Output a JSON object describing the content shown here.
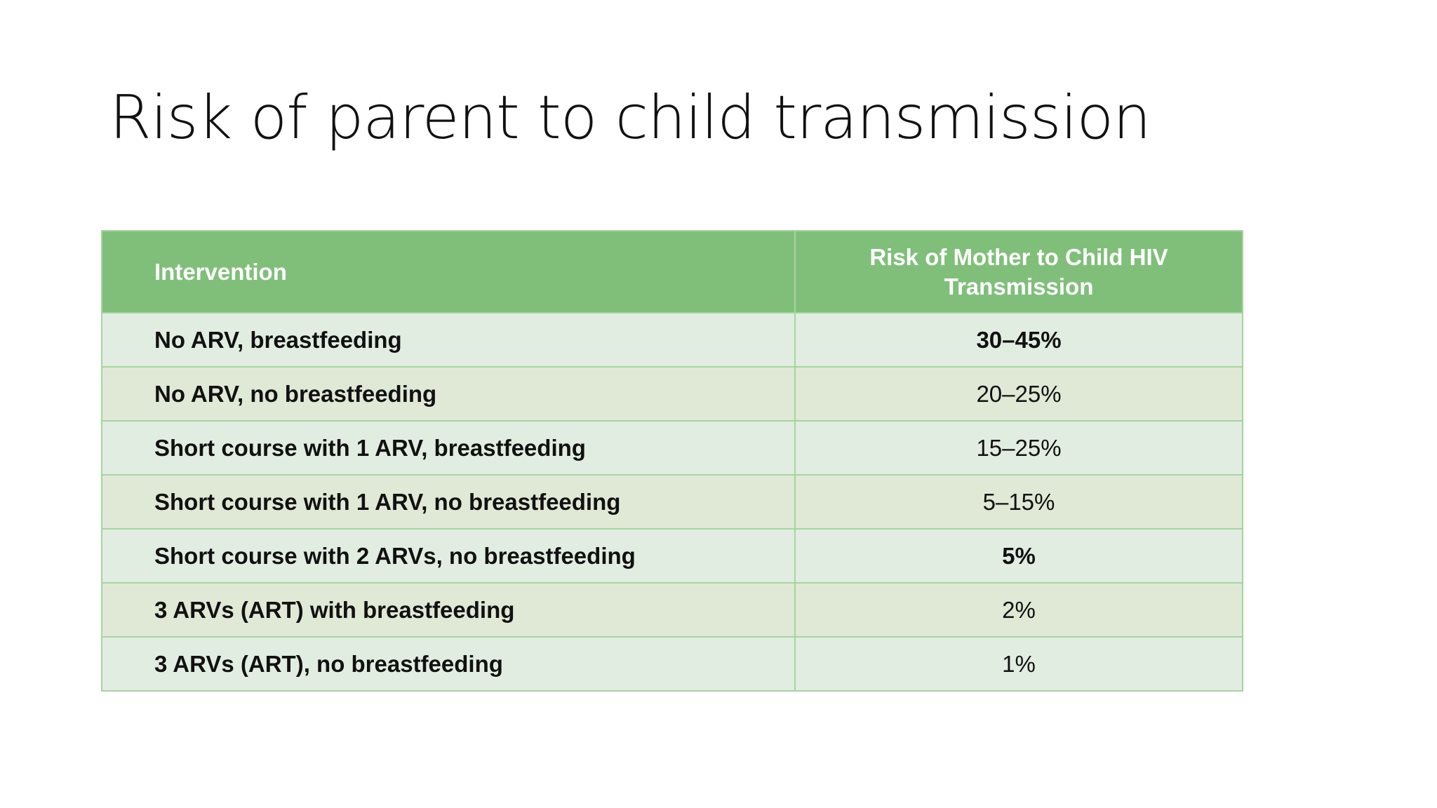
{
  "title": "Risk of parent to child transmission",
  "table": {
    "header": [
      "Intervention",
      "Risk of Mother to Child HIV Transmission"
    ],
    "rows": [
      [
        "No ARV, breastfeeding",
        "30–45%"
      ],
      [
        "No ARV, no breastfeeding",
        "20–25%"
      ],
      [
        "Short course with 1 ARV, breastfeeding",
        "15–25%"
      ],
      [
        "Short course with 1 ARV, no breastfeeding",
        "5–15%"
      ],
      [
        "Short course with 2 ARVs, no breastfeeding",
        "5%"
      ],
      [
        "3 ARVs (ART) with breastfeeding",
        "2%"
      ],
      [
        "3 ARVs (ART), no breastfeeding",
        "1%"
      ]
    ]
  }
}
